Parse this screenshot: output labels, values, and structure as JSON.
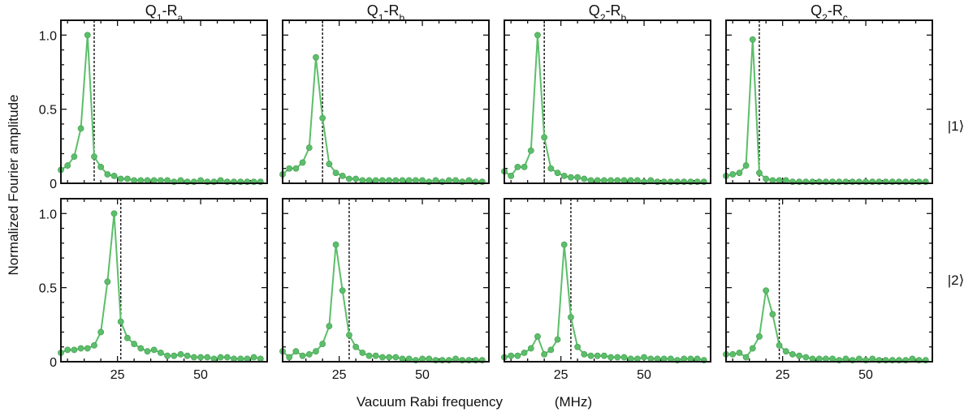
{
  "figure": {
    "ylabel": "Normalized Fourier amplitude",
    "xlabel": "Vacuum Rabi frequency",
    "xunit": "(MHz)",
    "column_titles": [
      {
        "main": "Q",
        "sub1": "1",
        "dash": "-R",
        "sub2": "a"
      },
      {
        "main": "Q",
        "sub1": "1",
        "dash": "-R",
        "sub2": "b"
      },
      {
        "main": "Q",
        "sub1": "2",
        "dash": "-R",
        "sub2": "b"
      },
      {
        "main": "Q",
        "sub1": "2",
        "dash": "-R",
        "sub2": "c"
      }
    ],
    "row_labels": [
      "|1⟩",
      "|2⟩"
    ],
    "colors": {
      "series": "#5cbe6a",
      "series_edge": "#3f9a4d",
      "marker_line": "#111111"
    }
  },
  "chart_data": {
    "type": "line",
    "xlim": [
      8,
      70
    ],
    "ylim": [
      0,
      1.1
    ],
    "xticks": [
      25,
      50
    ],
    "yticks": [
      0,
      0.5,
      1.0
    ],
    "ytick_labels": [
      "0",
      "0.5",
      "1.0"
    ],
    "xtick_labels": [
      "25",
      "50"
    ],
    "grid": false,
    "x": [
      8,
      10,
      12,
      14,
      16,
      18,
      20,
      22,
      24,
      26,
      28,
      30,
      32,
      34,
      36,
      38,
      40,
      42,
      44,
      46,
      48,
      50,
      52,
      54,
      56,
      58,
      60,
      62,
      64,
      66,
      68
    ],
    "panels": [
      {
        "row": 0,
        "col": 0,
        "peak_x": 18,
        "y": [
          0.09,
          0.12,
          0.18,
          0.37,
          1.0,
          0.18,
          0.11,
          0.06,
          0.05,
          0.03,
          0.03,
          0.02,
          0.02,
          0.02,
          0.02,
          0.02,
          0.02,
          0.01,
          0.02,
          0.01,
          0.01,
          0.02,
          0.01,
          0.01,
          0.02,
          0.01,
          0.01,
          0.01,
          0.01,
          0.01,
          0.01
        ]
      },
      {
        "row": 0,
        "col": 1,
        "peak_x": 20,
        "y": [
          0.06,
          0.1,
          0.1,
          0.14,
          0.24,
          0.85,
          0.44,
          0.13,
          0.07,
          0.05,
          0.03,
          0.03,
          0.02,
          0.02,
          0.02,
          0.02,
          0.02,
          0.02,
          0.02,
          0.02,
          0.02,
          0.02,
          0.01,
          0.02,
          0.01,
          0.02,
          0.02,
          0.01,
          0.02,
          0.01,
          0.01
        ]
      },
      {
        "row": 0,
        "col": 2,
        "peak_x": 20,
        "y": [
          0.08,
          0.05,
          0.11,
          0.11,
          0.22,
          1.0,
          0.31,
          0.1,
          0.07,
          0.05,
          0.04,
          0.04,
          0.03,
          0.02,
          0.02,
          0.02,
          0.02,
          0.02,
          0.02,
          0.02,
          0.02,
          0.01,
          0.02,
          0.01,
          0.01,
          0.01,
          0.01,
          0.01,
          0.01,
          0.01,
          0.01
        ]
      },
      {
        "row": 0,
        "col": 3,
        "peak_x": 18,
        "y": [
          0.05,
          0.06,
          0.07,
          0.12,
          0.97,
          0.07,
          0.03,
          0.02,
          0.02,
          0.02,
          0.01,
          0.01,
          0.01,
          0.01,
          0.01,
          0.01,
          0.01,
          0.01,
          0.01,
          0.01,
          0.01,
          0.01,
          0.01,
          0.01,
          0.01,
          0.01,
          0.01,
          0.01,
          0.01,
          0.01,
          0.01
        ]
      },
      {
        "row": 1,
        "col": 0,
        "peak_x": 26,
        "y": [
          0.06,
          0.08,
          0.08,
          0.09,
          0.09,
          0.11,
          0.2,
          0.54,
          1.0,
          0.27,
          0.16,
          0.12,
          0.09,
          0.07,
          0.08,
          0.06,
          0.04,
          0.04,
          0.05,
          0.04,
          0.03,
          0.03,
          0.03,
          0.02,
          0.03,
          0.03,
          0.02,
          0.02,
          0.02,
          0.03,
          0.02
        ]
      },
      {
        "row": 1,
        "col": 1,
        "peak_x": 28,
        "y": [
          0.07,
          0.03,
          0.07,
          0.04,
          0.05,
          0.07,
          0.12,
          0.24,
          0.79,
          0.48,
          0.18,
          0.1,
          0.06,
          0.04,
          0.04,
          0.03,
          0.03,
          0.03,
          0.02,
          0.02,
          0.01,
          0.02,
          0.02,
          0.01,
          0.01,
          0.01,
          0.02,
          0.01,
          0.01,
          0.01,
          0.01
        ]
      },
      {
        "row": 1,
        "col": 2,
        "peak_x": 28,
        "y": [
          0.03,
          0.04,
          0.04,
          0.06,
          0.09,
          0.17,
          0.05,
          0.08,
          0.15,
          0.79,
          0.3,
          0.1,
          0.05,
          0.04,
          0.04,
          0.04,
          0.03,
          0.03,
          0.03,
          0.02,
          0.02,
          0.03,
          0.02,
          0.02,
          0.02,
          0.02,
          0.01,
          0.02,
          0.02,
          0.02,
          0.01
        ]
      },
      {
        "row": 1,
        "col": 3,
        "peak_x": 24,
        "y": [
          0.05,
          0.05,
          0.06,
          0.03,
          0.09,
          0.17,
          0.48,
          0.32,
          0.11,
          0.07,
          0.05,
          0.04,
          0.03,
          0.02,
          0.02,
          0.02,
          0.02,
          0.01,
          0.02,
          0.01,
          0.02,
          0.01,
          0.02,
          0.01,
          0.01,
          0.01,
          0.01,
          0.01,
          0.02,
          0.01,
          0.01
        ]
      }
    ]
  }
}
